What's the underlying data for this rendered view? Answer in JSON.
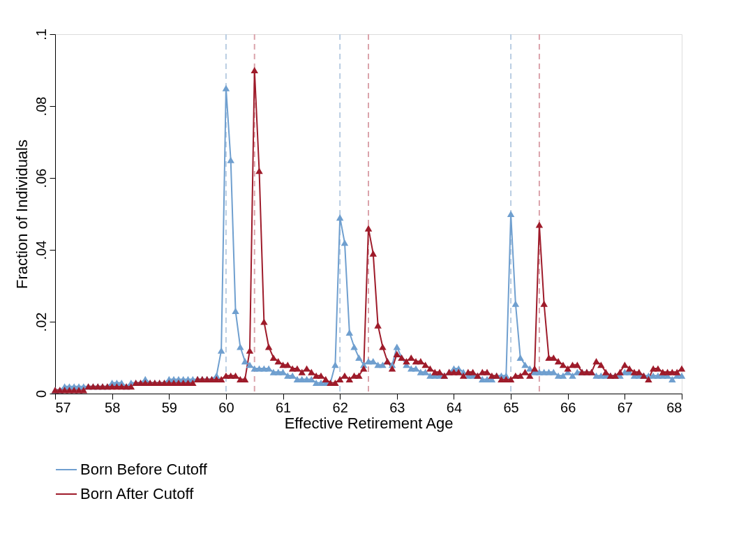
{
  "chart_data": {
    "type": "line",
    "xlabel": "Effective Retirement Age",
    "ylabel": "Fraction of Individuals",
    "x": [
      57,
      57.083,
      57.167,
      57.25,
      57.333,
      57.417,
      57.5,
      57.583,
      57.667,
      57.75,
      57.833,
      57.917,
      58,
      58.083,
      58.167,
      58.25,
      58.333,
      58.417,
      58.5,
      58.583,
      58.667,
      58.75,
      58.833,
      58.917,
      59,
      59.083,
      59.167,
      59.25,
      59.333,
      59.417,
      59.5,
      59.583,
      59.667,
      59.75,
      59.833,
      59.917,
      60,
      60.083,
      60.167,
      60.25,
      60.333,
      60.417,
      60.5,
      60.583,
      60.667,
      60.75,
      60.833,
      60.917,
      61,
      61.083,
      61.167,
      61.25,
      61.333,
      61.417,
      61.5,
      61.583,
      61.667,
      61.75,
      61.833,
      61.917,
      62,
      62.083,
      62.167,
      62.25,
      62.333,
      62.417,
      62.5,
      62.583,
      62.667,
      62.75,
      62.833,
      62.917,
      63,
      63.083,
      63.167,
      63.25,
      63.333,
      63.417,
      63.5,
      63.583,
      63.667,
      63.75,
      63.833,
      63.917,
      64,
      64.083,
      64.167,
      64.25,
      64.333,
      64.417,
      64.5,
      64.583,
      64.667,
      64.75,
      64.833,
      64.917,
      65,
      65.083,
      65.167,
      65.25,
      65.333,
      65.417,
      65.5,
      65.583,
      65.667,
      65.75,
      65.833,
      65.917,
      66,
      66.083,
      66.167,
      66.25,
      66.333,
      66.417,
      66.5,
      66.583,
      66.667,
      66.75,
      66.833,
      66.917,
      67,
      67.083,
      67.167,
      67.25,
      67.333,
      67.417,
      67.5,
      67.583,
      67.667,
      67.75,
      67.833,
      67.917,
      68
    ],
    "series": [
      {
        "name": "Born Before Cutoff",
        "color": "#6f9fcf",
        "values": [
          0.001,
          0.001,
          0.002,
          0.002,
          0.002,
          0.002,
          0.002,
          0.002,
          0.002,
          0.002,
          0.002,
          0.002,
          0.003,
          0.003,
          0.003,
          0.002,
          0.003,
          0.003,
          0.003,
          0.004,
          0.003,
          0.003,
          0.003,
          0.003,
          0.004,
          0.004,
          0.004,
          0.004,
          0.004,
          0.004,
          0.004,
          0.004,
          0.004,
          0.004,
          0.005,
          0.012,
          0.085,
          0.065,
          0.023,
          0.013,
          0.009,
          0.008,
          0.007,
          0.007,
          0.007,
          0.007,
          0.006,
          0.006,
          0.006,
          0.005,
          0.005,
          0.004,
          0.004,
          0.004,
          0.004,
          0.003,
          0.003,
          0.003,
          0.003,
          0.008,
          0.049,
          0.042,
          0.017,
          0.013,
          0.01,
          0.008,
          0.009,
          0.009,
          0.008,
          0.008,
          0.009,
          0.008,
          0.013,
          0.01,
          0.008,
          0.007,
          0.007,
          0.006,
          0.006,
          0.005,
          0.005,
          0.005,
          0.005,
          0.006,
          0.007,
          0.007,
          0.006,
          0.005,
          0.005,
          0.005,
          0.004,
          0.004,
          0.004,
          0.005,
          0.005,
          0.005,
          0.05,
          0.025,
          0.01,
          0.008,
          0.007,
          0.006,
          0.006,
          0.006,
          0.006,
          0.006,
          0.005,
          0.005,
          0.006,
          0.005,
          0.006,
          0.006,
          0.006,
          0.006,
          0.005,
          0.005,
          0.005,
          0.005,
          0.005,
          0.005,
          0.006,
          0.006,
          0.005,
          0.005,
          0.005,
          0.005,
          0.005,
          0.005,
          0.005,
          0.005,
          0.004,
          0.005,
          0.005
        ]
      },
      {
        "name": "Born After Cutoff",
        "color": "#9e1b2a",
        "values": [
          0.001,
          0.001,
          0.001,
          0.001,
          0.001,
          0.001,
          0.001,
          0.002,
          0.002,
          0.002,
          0.002,
          0.002,
          0.002,
          0.002,
          0.002,
          0.002,
          0.002,
          0.003,
          0.003,
          0.003,
          0.003,
          0.003,
          0.003,
          0.003,
          0.003,
          0.003,
          0.003,
          0.003,
          0.003,
          0.003,
          0.004,
          0.004,
          0.004,
          0.004,
          0.004,
          0.004,
          0.005,
          0.005,
          0.005,
          0.004,
          0.004,
          0.012,
          0.09,
          0.062,
          0.02,
          0.013,
          0.01,
          0.009,
          0.008,
          0.008,
          0.007,
          0.007,
          0.006,
          0.007,
          0.006,
          0.005,
          0.005,
          0.004,
          0.003,
          0.003,
          0.004,
          0.005,
          0.004,
          0.005,
          0.005,
          0.007,
          0.046,
          0.039,
          0.019,
          0.013,
          0.009,
          0.007,
          0.011,
          0.01,
          0.009,
          0.01,
          0.009,
          0.009,
          0.008,
          0.007,
          0.006,
          0.006,
          0.005,
          0.006,
          0.006,
          0.006,
          0.005,
          0.006,
          0.006,
          0.005,
          0.006,
          0.006,
          0.005,
          0.005,
          0.004,
          0.004,
          0.004,
          0.005,
          0.005,
          0.006,
          0.005,
          0.007,
          0.047,
          0.025,
          0.01,
          0.01,
          0.009,
          0.008,
          0.007,
          0.008,
          0.008,
          0.006,
          0.006,
          0.006,
          0.009,
          0.008,
          0.006,
          0.005,
          0.005,
          0.006,
          0.008,
          0.007,
          0.006,
          0.006,
          0.005,
          0.004,
          0.007,
          0.007,
          0.006,
          0.006,
          0.006,
          0.006,
          0.007
        ]
      }
    ],
    "xlim": [
      57,
      68
    ],
    "xticks": [
      57,
      58,
      59,
      60,
      61,
      62,
      63,
      64,
      65,
      66,
      67,
      68
    ],
    "ylim": [
      0,
      0.1
    ],
    "yticks": [
      0,
      {
        "value": 0.02,
        "label": ".02"
      },
      {
        "value": 0.04,
        "label": ".04"
      },
      {
        "value": 0.06,
        "label": ".06"
      },
      {
        "value": 0.08,
        "label": ".08"
      },
      {
        "value": 0.1,
        "label": ".1"
      }
    ],
    "ref_lines": [
      {
        "axis": "x",
        "value": 60,
        "color": "#b9cde2",
        "line_style": "dashed"
      },
      {
        "axis": "x",
        "value": 60.5,
        "color": "#dba3ab",
        "line_style": "dashed"
      },
      {
        "axis": "x",
        "value": 62,
        "color": "#b9cde2",
        "line_style": "dashed"
      },
      {
        "axis": "x",
        "value": 62.5,
        "color": "#dba3ab",
        "line_style": "dashed"
      },
      {
        "axis": "x",
        "value": 65,
        "color": "#b9cde2",
        "line_style": "dashed"
      },
      {
        "axis": "x",
        "value": 65.5,
        "color": "#dba3ab",
        "line_style": "dashed"
      }
    ],
    "marker": "triangle",
    "line_style": "solid",
    "grid": false,
    "legend": "bottom"
  }
}
